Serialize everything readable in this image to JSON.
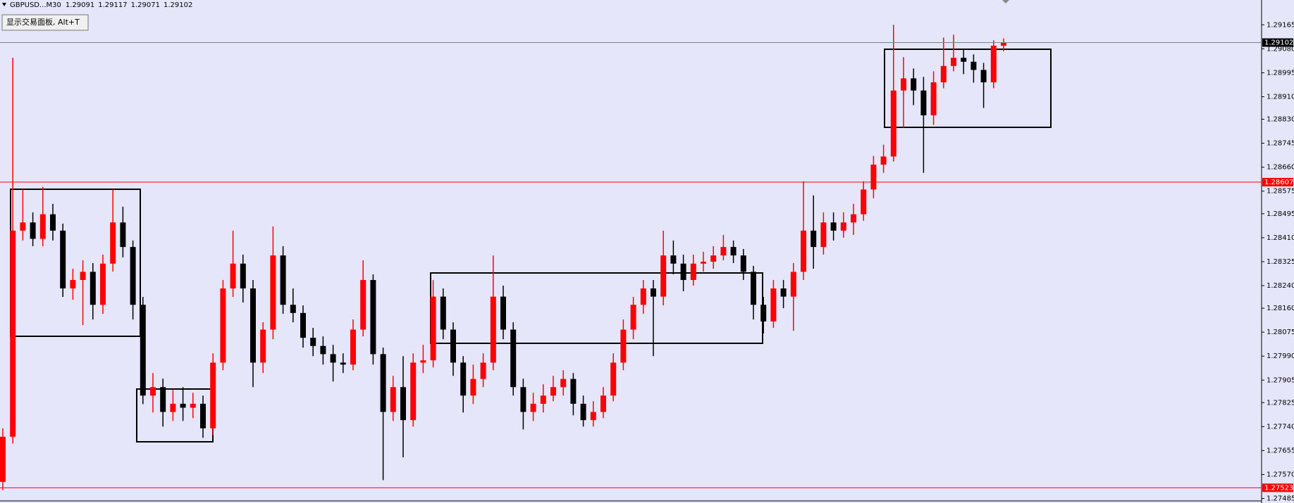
{
  "chart_data": {
    "type": "candlestick",
    "title": "GBPUSD...M30",
    "annotation": "显示交易面板, Alt+T",
    "up_color": "#ff0000",
    "down_color": "#000000",
    "background": "#e6e6fa",
    "ylim": [
      1.27479,
      1.29253
    ],
    "yticks": [
      1.29165,
      {
        "value": 1.2908,
        "label": "1.29080"
      },
      1.28995,
      {
        "value": 1.2891,
        "label": "1.28910"
      },
      {
        "value": 1.2883,
        "label": "1.28830"
      },
      1.28745,
      {
        "value": 1.2866,
        "label": "1.28660"
      },
      1.28575,
      1.28495,
      {
        "value": 1.2841,
        "label": "1.28410"
      },
      1.28325,
      {
        "value": 1.2824,
        "label": "1.28240"
      },
      {
        "value": 1.2816,
        "label": "1.28160"
      },
      1.28075,
      {
        "value": 1.2799,
        "label": "1.27990"
      },
      1.27905,
      1.27825,
      {
        "value": 1.2774,
        "label": "1.27740"
      },
      1.27655,
      {
        "value": 1.2757,
        "label": "1.27570"
      },
      1.27485
    ],
    "hlines": [
      {
        "value": 1.29102,
        "color": "#808080",
        "label_color": "#000000"
      },
      {
        "value": 1.28607,
        "color": "#ff0000",
        "label_color": "#ff0000"
      },
      {
        "value": 1.27523,
        "color": "#ff0000",
        "label_color": "#ff0000"
      }
    ],
    "candles": [
      [
        1.27544,
        1.27734,
        1.27515,
        1.27704
      ],
      [
        1.27704,
        1.29048,
        1.2768,
        1.28435
      ],
      [
        1.28435,
        1.28581,
        1.284,
        1.28464
      ],
      [
        1.28464,
        1.285,
        1.2838,
        1.28406
      ],
      [
        1.28406,
        1.2859,
        1.2838,
        1.28493
      ],
      [
        1.28493,
        1.2853,
        1.284,
        1.28435
      ],
      [
        1.28435,
        1.2846,
        1.282,
        1.2823
      ],
      [
        1.2823,
        1.283,
        1.2819,
        1.2826
      ],
      [
        1.2826,
        1.2833,
        1.281,
        1.28289
      ],
      [
        1.28289,
        1.2832,
        1.2812,
        1.28172
      ],
      [
        1.28172,
        1.2835,
        1.2814,
        1.28318
      ],
      [
        1.28318,
        1.28581,
        1.2829,
        1.28464
      ],
      [
        1.28464,
        1.2852,
        1.2834,
        1.28377
      ],
      [
        1.28377,
        1.284,
        1.2812,
        1.28172
      ],
      [
        1.28172,
        1.282,
        1.2782,
        1.2785
      ],
      [
        1.2785,
        1.2793,
        1.2779,
        1.2788
      ],
      [
        1.2788,
        1.2791,
        1.2774,
        1.27792
      ],
      [
        1.27792,
        1.2787,
        1.2776,
        1.27821
      ],
      [
        1.27821,
        1.2788,
        1.2776,
        1.27807
      ],
      [
        1.27807,
        1.2786,
        1.2777,
        1.27821
      ],
      [
        1.27821,
        1.2785,
        1.277,
        1.27734
      ],
      [
        1.27734,
        1.28,
        1.2771,
        1.27967
      ],
      [
        1.27967,
        1.2826,
        1.2794,
        1.2823
      ],
      [
        1.2823,
        1.28435,
        1.282,
        1.28318
      ],
      [
        1.28318,
        1.2835,
        1.2818,
        1.2823
      ],
      [
        1.2823,
        1.2826,
        1.2788,
        1.27967
      ],
      [
        1.27967,
        1.2811,
        1.2793,
        1.28084
      ],
      [
        1.28084,
        1.2845,
        1.2805,
        1.28347
      ],
      [
        1.28347,
        1.2838,
        1.2814,
        1.28172
      ],
      [
        1.28172,
        1.2823,
        1.2811,
        1.28143
      ],
      [
        1.28143,
        1.2817,
        1.2802,
        1.28055
      ],
      [
        1.28055,
        1.2809,
        1.2799,
        1.28026
      ],
      [
        1.28026,
        1.2806,
        1.2796,
        1.27997
      ],
      [
        1.27997,
        1.2803,
        1.279,
        1.27967
      ],
      [
        1.27967,
        1.28,
        1.2793,
        1.2796
      ],
      [
        1.2796,
        1.2812,
        1.2794,
        1.28084
      ],
      [
        1.28084,
        1.2833,
        1.2806,
        1.2826
      ],
      [
        1.2826,
        1.2828,
        1.2796,
        1.27997
      ],
      [
        1.27997,
        1.2802,
        1.2755,
        1.27792
      ],
      [
        1.27792,
        1.2792,
        1.2776,
        1.2788
      ],
      [
        1.2788,
        1.2799,
        1.27631,
        1.27763
      ],
      [
        1.27763,
        1.28,
        1.2774,
        1.27967
      ],
      [
        1.27967,
        1.2803,
        1.2793,
        1.27975
      ],
      [
        1.27975,
        1.2826,
        1.2795,
        1.28201
      ],
      [
        1.28201,
        1.2823,
        1.2805,
        1.28084
      ],
      [
        1.28084,
        1.2811,
        1.2792,
        1.27967
      ],
      [
        1.27967,
        1.2799,
        1.2779,
        1.2785
      ],
      [
        1.2785,
        1.2796,
        1.2782,
        1.27909
      ],
      [
        1.27909,
        1.28,
        1.2788,
        1.27967
      ],
      [
        1.27967,
        1.28347,
        1.2794,
        1.28201
      ],
      [
        1.28201,
        1.2824,
        1.2805,
        1.28084
      ],
      [
        1.28084,
        1.2811,
        1.2785,
        1.2788
      ],
      [
        1.2788,
        1.2791,
        1.2773,
        1.27792
      ],
      [
        1.27792,
        1.2786,
        1.2776,
        1.27821
      ],
      [
        1.27821,
        1.2789,
        1.2779,
        1.2785
      ],
      [
        1.2785,
        1.2792,
        1.2783,
        1.2788
      ],
      [
        1.2788,
        1.2794,
        1.2785,
        1.27909
      ],
      [
        1.27909,
        1.2793,
        1.2778,
        1.27821
      ],
      [
        1.27821,
        1.2785,
        1.2774,
        1.27763
      ],
      [
        1.27763,
        1.2783,
        1.2774,
        1.27792
      ],
      [
        1.27792,
        1.2788,
        1.2777,
        1.2785
      ],
      [
        1.2785,
        1.28,
        1.2783,
        1.27967
      ],
      [
        1.27967,
        1.2812,
        1.2794,
        1.28084
      ],
      [
        1.28084,
        1.282,
        1.2805,
        1.28172
      ],
      [
        1.28172,
        1.2826,
        1.2814,
        1.2823
      ],
      [
        1.2823,
        1.2826,
        1.2799,
        1.28201
      ],
      [
        1.28201,
        1.28435,
        1.2817,
        1.28347
      ],
      [
        1.28347,
        1.284,
        1.2828,
        1.28318
      ],
      [
        1.28318,
        1.2835,
        1.2822,
        1.2826
      ],
      [
        1.2826,
        1.2835,
        1.2824,
        1.28318
      ],
      [
        1.28318,
        1.2836,
        1.2829,
        1.28325
      ],
      [
        1.28325,
        1.2838,
        1.283,
        1.28347
      ],
      [
        1.28347,
        1.2842,
        1.2833,
        1.28377
      ],
      [
        1.28377,
        1.284,
        1.2832,
        1.28347
      ],
      [
        1.28347,
        1.2837,
        1.2826,
        1.28289
      ],
      [
        1.28289,
        1.2831,
        1.2812,
        1.28172
      ],
      [
        1.28172,
        1.282,
        1.2807,
        1.28113
      ],
      [
        1.28113,
        1.2826,
        1.2809,
        1.2823
      ],
      [
        1.2823,
        1.2826,
        1.2816,
        1.28201
      ],
      [
        1.28201,
        1.2832,
        1.2808,
        1.28289
      ],
      [
        1.28289,
        1.2861,
        1.2826,
        1.28435
      ],
      [
        1.28435,
        1.2856,
        1.283,
        1.28377
      ],
      [
        1.28377,
        1.285,
        1.2835,
        1.28464
      ],
      [
        1.28464,
        1.285,
        1.284,
        1.28435
      ],
      [
        1.28435,
        1.285,
        1.2841,
        1.28464
      ],
      [
        1.28464,
        1.2853,
        1.2842,
        1.28493
      ],
      [
        1.28493,
        1.2861,
        1.2847,
        1.28581
      ],
      [
        1.28581,
        1.287,
        1.2855,
        1.28669
      ],
      [
        1.28669,
        1.2874,
        1.2864,
        1.28698
      ],
      [
        1.28698,
        1.29165,
        1.2868,
        1.28932
      ],
      [
        1.28932,
        1.2905,
        1.288,
        1.28975
      ],
      [
        1.28975,
        1.2901,
        1.2888,
        1.28932
      ],
      [
        1.28932,
        1.2898,
        1.2864,
        1.28844
      ],
      [
        1.28844,
        1.29,
        1.2881,
        1.28961
      ],
      [
        1.28961,
        1.2912,
        1.2894,
        1.29019
      ],
      [
        1.29019,
        1.2913,
        1.29,
        1.29048
      ],
      [
        1.29048,
        1.2908,
        1.2899,
        1.29034
      ],
      [
        1.29034,
        1.2906,
        1.2896,
        1.29005
      ],
      [
        1.29005,
        1.2903,
        1.2887,
        1.28961
      ],
      [
        1.28961,
        1.2911,
        1.2894,
        1.29091
      ],
      [
        1.29091,
        1.29117,
        1.29071,
        1.29102
      ]
    ]
  }
}
